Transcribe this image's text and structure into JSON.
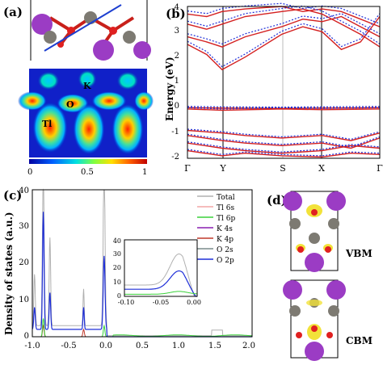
{
  "panels": {
    "a": {
      "label": "(a)",
      "atom_labels": {
        "k": "K",
        "o": "O",
        "tl": "Tl"
      },
      "colorbar": {
        "ticks": [
          "0",
          "0.5",
          "1"
        ]
      }
    },
    "b": {
      "label": "(b)",
      "ylabel": "Energy (eV)",
      "y_ticks": [
        "-2",
        "-1",
        "0",
        "1",
        "2",
        "3",
        "4"
      ],
      "x_ticks": [
        "Γ",
        "Y",
        "S",
        "X",
        "Γ"
      ]
    },
    "c": {
      "label": "(c)",
      "ylabel": "Density of states (a.u.)",
      "y_ticks": [
        "0",
        "10",
        "20",
        "30",
        "40"
      ],
      "x_ticks": [
        "-1.0",
        "-0.5",
        "0.0",
        "0.5",
        "1.0",
        "1.5",
        "2.0"
      ],
      "legend": [
        {
          "name": "Total",
          "color": "#b0b0b0"
        },
        {
          "name": "Tl 6s",
          "color": "#f4a6a6"
        },
        {
          "name": "Tl 6p",
          "color": "#3ad13a"
        },
        {
          "name": "K 4s",
          "color": "#8a1fb0"
        },
        {
          "name": "K 4p",
          "color": "#c0392b"
        },
        {
          "name": "O 2s",
          "color": "#7a8c8c"
        },
        {
          "name": "O 2p",
          "color": "#1f2fd8"
        }
      ],
      "inset": {
        "y_ticks": [
          "0",
          "10",
          "20",
          "30",
          "40"
        ],
        "x_ticks": [
          "-0.10",
          "-0.05",
          "0.00"
        ]
      }
    },
    "d": {
      "label": "(d)",
      "vbm_label": "VBM",
      "cbm_label": "CBM"
    }
  },
  "chart_data": [
    {
      "type": "line",
      "ylim": [
        -2,
        4
      ],
      "x_categories": [
        "Γ",
        "Y",
        "S",
        "X",
        "Γ"
      ],
      "series": [
        {
          "style": "solid",
          "color": "#d42020"
        },
        {
          "style": "dotted",
          "color": "#1f2fd8"
        }
      ]
    },
    {
      "type": "line",
      "xlim": [
        -1.0,
        2.0
      ],
      "ylim": [
        0,
        40
      ]
    }
  ]
}
